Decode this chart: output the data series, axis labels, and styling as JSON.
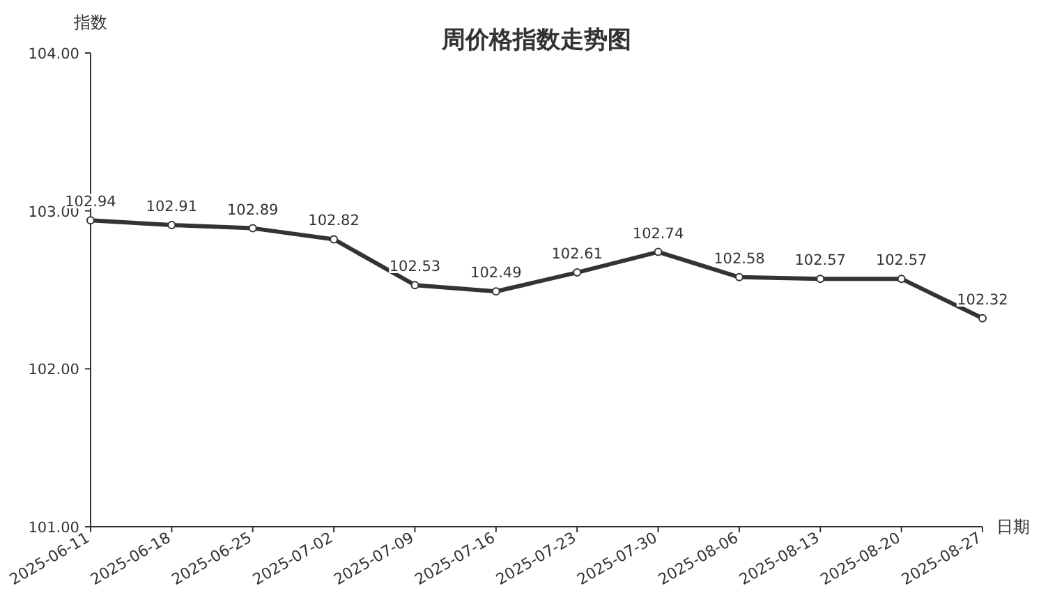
{
  "chart_data": {
    "type": "line",
    "title": "周价格指数走势图",
    "xlabel": "日期",
    "ylabel": "指数",
    "categories": [
      "2025-06-11",
      "2025-06-18",
      "2025-06-25",
      "2025-07-02",
      "2025-07-09",
      "2025-07-16",
      "2025-07-23",
      "2025-07-30",
      "2025-08-06",
      "2025-08-13",
      "2025-08-20",
      "2025-08-27"
    ],
    "series": [
      {
        "color": "#333333",
        "values": [
          102.94,
          102.91,
          102.89,
          102.82,
          102.53,
          102.49,
          102.61,
          102.74,
          102.58,
          102.57,
          102.57,
          102.32
        ]
      }
    ],
    "ylim": [
      101,
      104
    ],
    "yticks": [
      {
        "value": 101,
        "label": "101.00"
      },
      {
        "value": 102,
        "label": "102.00"
      },
      {
        "value": 103,
        "label": "103.00"
      },
      {
        "value": 104,
        "label": "104.00"
      }
    ],
    "data_labels": true,
    "marker": "circle",
    "line_style": "solid",
    "grid": false
  }
}
